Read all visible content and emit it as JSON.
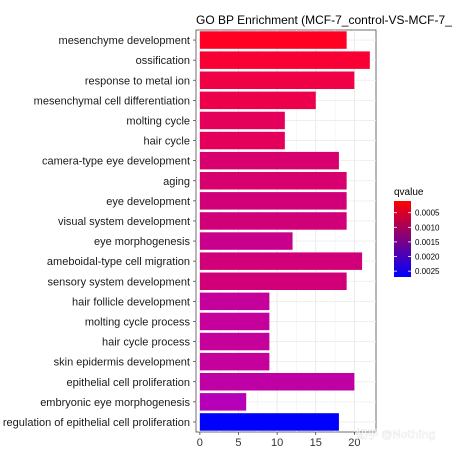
{
  "chart_data": {
    "type": "bar",
    "orientation": "horizontal",
    "title": "GO BP Enrichment (MCF-7_control-VS-MCF-7_",
    "xlabel": "",
    "ylabel": "",
    "xlim": [
      -0.5,
      22.8
    ],
    "x_ticks": [
      "0",
      "5",
      "10",
      "15",
      "20"
    ],
    "x_tick_values": [
      0,
      5,
      10,
      15,
      20
    ],
    "grid": true,
    "categories": [
      "mesenchyme development",
      "ossification",
      "response to metal ion",
      "mesenchymal cell differentiation",
      "molting cycle",
      "hair cycle",
      "camera-type eye development",
      "aging",
      "eye development",
      "visual system development",
      "eye morphogenesis",
      "ameboidal-type cell migration",
      "sensory system development",
      "hair follicle development",
      "molting cycle process",
      "hair cycle process",
      "skin epidermis development",
      "epithelial cell proliferation",
      "embryonic eye morphogenesis",
      "regulation of epithelial cell proliferation"
    ],
    "values": [
      19,
      22,
      20,
      15,
      11,
      11,
      18,
      19,
      19,
      19,
      12,
      21,
      19,
      9,
      9,
      9,
      9,
      20,
      6,
      18
    ],
    "colors": [
      "#ff0022",
      "#f80033",
      "#f00044",
      "#ec004b",
      "#e4005a",
      "#e4005a",
      "#d8006e",
      "#d8006e",
      "#d10079",
      "#d10079",
      "#c9008b",
      "#d10079",
      "#d10079",
      "#c5009b",
      "#c5009b",
      "#c5009b",
      "#c5009b",
      "#bf00a4",
      "#b600b7",
      "#0000ff"
    ],
    "legend": {
      "title": "qvalue",
      "position": "right",
      "ticks": [
        "0.0005",
        "0.0010",
        "0.0015",
        "0.0020",
        "0.0025"
      ],
      "tick_values": [
        0.0005,
        0.001,
        0.0015,
        0.002,
        0.0025
      ],
      "range": [
        0.0001,
        0.0027
      ],
      "color_low": "#ff0000",
      "color_high": "#0000ff"
    }
  },
  "watermark": "知乎 @Nothing"
}
